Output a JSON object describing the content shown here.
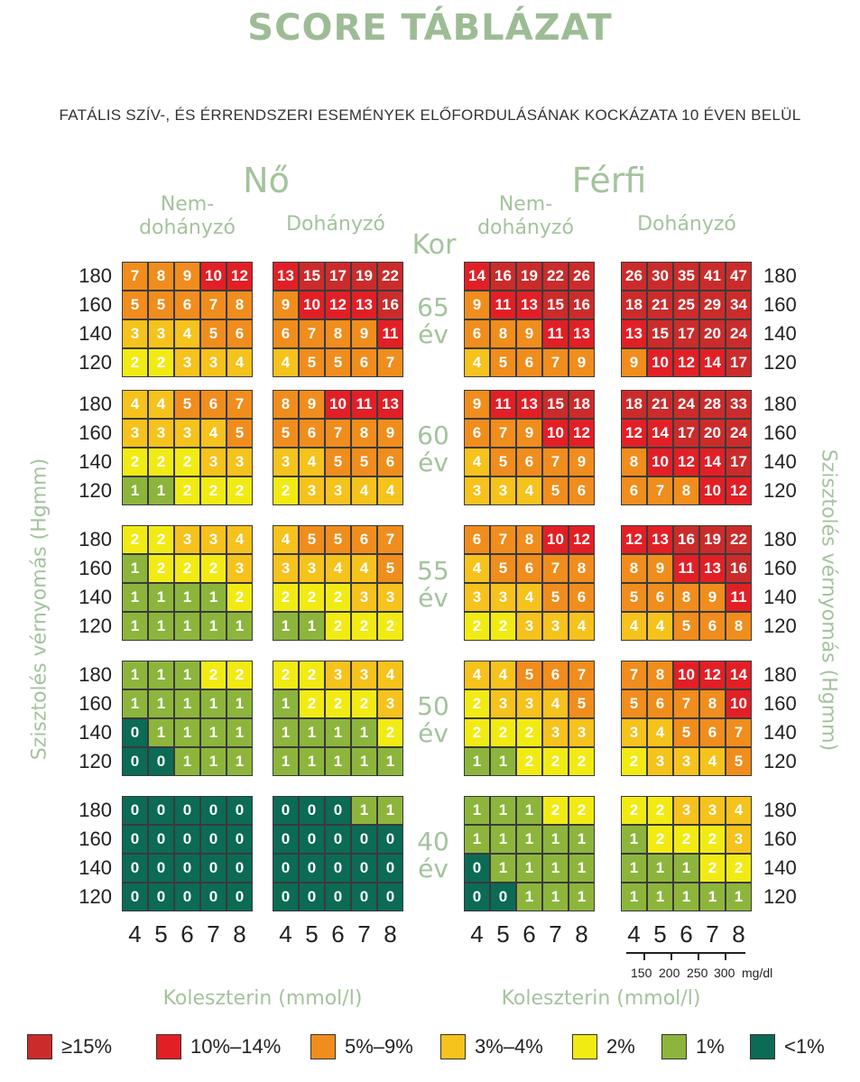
{
  "title": "SCORE TÁBLÁZAT",
  "subtitle": "FATÁLIS SZÍV-, ÉS ÉRRENDSZERI ESEMÉNYEK ELŐFORDULÁSÁNAK KOCKÁZATA 10 ÉVEN BELÜL",
  "headers": {
    "female": "Nő",
    "male": "Férfi",
    "nonsmoker_line1": "Nem-",
    "nonsmoker_line2": "dohányzó",
    "smoker": "Dohányzó",
    "age": "Kor"
  },
  "age_labels": [
    {
      "age": "65",
      "unit": "év"
    },
    {
      "age": "60",
      "unit": "év"
    },
    {
      "age": "55",
      "unit": "év"
    },
    {
      "age": "50",
      "unit": "év"
    },
    {
      "age": "40",
      "unit": "év"
    }
  ],
  "y_axis_label_left": "Szisztolés vérnyomás (Hgmm)",
  "y_axis_label_right": "Szisztolés vérnyomás (Hgmm)",
  "x_axis_label": "Koleszterin (mmol/l)",
  "mgdl_unit": "mg/dl",
  "mgdl_ticks": [
    "150",
    "200",
    "250",
    "300"
  ],
  "legend": [
    {
      "label": "≥15%",
      "color": "#cc2b2b"
    },
    {
      "label": "10%–14%",
      "color": "#e31f26"
    },
    {
      "label": "5%–9%",
      "color": "#f08d1c"
    },
    {
      "label": "3%–4%",
      "color": "#f6c21c"
    },
    {
      "label": "2%",
      "color": "#f2eb13"
    },
    {
      "label": "1%",
      "color": "#8db53c"
    },
    {
      "label": "<1%",
      "color": "#0b6b55"
    }
  ],
  "chart_data": {
    "type": "heatmap",
    "title": "SCORE TÁBLÁZAT",
    "subtitle": "FATÁLIS SZÍV-, ÉS ÉRRENDSZERI ESEMÉNYEK ELŐFORDULÁSÁNAK KOCKÁZATA 10 ÉVEN BELÜL",
    "xlabel": "Koleszterin (mmol/l)",
    "ylabel": "Szisztolés vérnyomás (Hgmm)",
    "x_categories": [
      "4",
      "5",
      "6",
      "7",
      "8"
    ],
    "y_categories": [
      "180",
      "160",
      "140",
      "120"
    ],
    "columns": [
      "Nő Nem-dohányzó",
      "Nő Dohányzó",
      "Férfi Nem-dohányzó",
      "Férfi Dohányzó"
    ],
    "ages": [
      "65",
      "60",
      "55",
      "50",
      "40"
    ],
    "grids": [
      [
        [
          [
            7,
            8,
            9,
            10,
            12
          ],
          [
            5,
            5,
            6,
            7,
            8
          ],
          [
            3,
            3,
            4,
            5,
            6
          ],
          [
            2,
            2,
            3,
            3,
            4
          ]
        ],
        [
          [
            13,
            15,
            17,
            19,
            22
          ],
          [
            9,
            10,
            12,
            13,
            16
          ],
          [
            6,
            7,
            8,
            9,
            11
          ],
          [
            4,
            5,
            5,
            6,
            7
          ]
        ],
        [
          [
            14,
            16,
            19,
            22,
            26
          ],
          [
            9,
            11,
            13,
            15,
            16
          ],
          [
            6,
            8,
            9,
            11,
            13
          ],
          [
            4,
            5,
            6,
            7,
            9
          ]
        ],
        [
          [
            26,
            30,
            35,
            41,
            47
          ],
          [
            18,
            21,
            25,
            29,
            34
          ],
          [
            13,
            15,
            17,
            20,
            24
          ],
          [
            9,
            10,
            12,
            14,
            17
          ]
        ]
      ],
      [
        [
          [
            4,
            4,
            5,
            6,
            7
          ],
          [
            3,
            3,
            3,
            4,
            5
          ],
          [
            2,
            2,
            2,
            3,
            3
          ],
          [
            1,
            1,
            2,
            2,
            2
          ]
        ],
        [
          [
            8,
            9,
            10,
            11,
            13
          ],
          [
            5,
            6,
            7,
            8,
            9
          ],
          [
            3,
            4,
            5,
            5,
            6
          ],
          [
            2,
            3,
            3,
            4,
            4
          ]
        ],
        [
          [
            9,
            11,
            13,
            15,
            18
          ],
          [
            6,
            7,
            9,
            10,
            12
          ],
          [
            4,
            5,
            6,
            7,
            9
          ],
          [
            3,
            3,
            4,
            5,
            6
          ]
        ],
        [
          [
            18,
            21,
            24,
            28,
            33
          ],
          [
            12,
            14,
            17,
            20,
            24
          ],
          [
            8,
            10,
            12,
            14,
            17
          ],
          [
            6,
            7,
            8,
            10,
            12
          ]
        ]
      ],
      [
        [
          [
            2,
            2,
            3,
            3,
            4
          ],
          [
            1,
            2,
            2,
            2,
            3
          ],
          [
            1,
            1,
            1,
            1,
            2
          ],
          [
            1,
            1,
            1,
            1,
            1
          ]
        ],
        [
          [
            4,
            5,
            5,
            6,
            7
          ],
          [
            3,
            3,
            4,
            4,
            5
          ],
          [
            2,
            2,
            2,
            3,
            3
          ],
          [
            1,
            1,
            2,
            2,
            2
          ]
        ],
        [
          [
            6,
            7,
            8,
            10,
            12
          ],
          [
            4,
            5,
            6,
            7,
            8
          ],
          [
            3,
            3,
            4,
            5,
            6
          ],
          [
            2,
            2,
            3,
            3,
            4
          ]
        ],
        [
          [
            12,
            13,
            16,
            19,
            22
          ],
          [
            8,
            9,
            11,
            13,
            16
          ],
          [
            5,
            6,
            8,
            9,
            11
          ],
          [
            4,
            4,
            5,
            6,
            8
          ]
        ]
      ],
      [
        [
          [
            1,
            1,
            1,
            2,
            2
          ],
          [
            1,
            1,
            1,
            1,
            1
          ],
          [
            0,
            1,
            1,
            1,
            1
          ],
          [
            0,
            0,
            1,
            1,
            1
          ]
        ],
        [
          [
            2,
            2,
            3,
            3,
            4
          ],
          [
            1,
            2,
            2,
            2,
            3
          ],
          [
            1,
            1,
            1,
            1,
            2
          ],
          [
            1,
            1,
            1,
            1,
            1
          ]
        ],
        [
          [
            4,
            4,
            5,
            6,
            7
          ],
          [
            2,
            3,
            3,
            4,
            5
          ],
          [
            2,
            2,
            2,
            3,
            3
          ],
          [
            1,
            1,
            2,
            2,
            2
          ]
        ],
        [
          [
            7,
            8,
            10,
            12,
            14
          ],
          [
            5,
            6,
            7,
            8,
            10
          ],
          [
            3,
            4,
            5,
            6,
            7
          ],
          [
            2,
            3,
            3,
            4,
            5
          ]
        ]
      ],
      [
        [
          [
            0,
            0,
            0,
            0,
            0
          ],
          [
            0,
            0,
            0,
            0,
            0
          ],
          [
            0,
            0,
            0,
            0,
            0
          ],
          [
            0,
            0,
            0,
            0,
            0
          ]
        ],
        [
          [
            0,
            0,
            0,
            1,
            1
          ],
          [
            0,
            0,
            0,
            0,
            0
          ],
          [
            0,
            0,
            0,
            0,
            0
          ],
          [
            0,
            0,
            0,
            0,
            0
          ]
        ],
        [
          [
            1,
            1,
            1,
            2,
            2
          ],
          [
            1,
            1,
            1,
            1,
            1
          ],
          [
            0,
            1,
            1,
            1,
            1
          ],
          [
            0,
            0,
            1,
            1,
            1
          ]
        ],
        [
          [
            2,
            2,
            3,
            3,
            4
          ],
          [
            1,
            2,
            2,
            2,
            3
          ],
          [
            1,
            1,
            1,
            2,
            2
          ],
          [
            1,
            1,
            1,
            1,
            1
          ]
        ]
      ]
    ]
  }
}
